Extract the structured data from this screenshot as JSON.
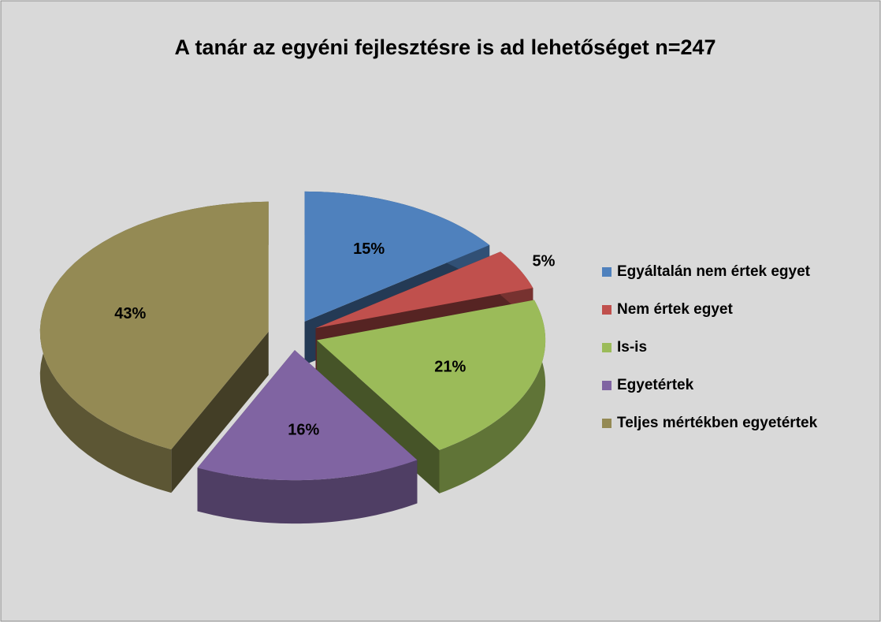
{
  "chart_data": {
    "type": "pie3d",
    "title": "A tanár az egyéni fejlesztésre is ad lehetőséget n=247",
    "categories": [
      "Egyáltalán nem értek egyet",
      "Nem értek egyet",
      "Is-is",
      "Egyetértek",
      "Teljes mértékben egyetértek"
    ],
    "values": [
      15,
      5,
      21,
      16,
      43
    ],
    "value_labels": [
      "15%",
      "5%",
      "21%",
      "16%",
      "43%"
    ],
    "colors": [
      "#4f81bd",
      "#c0504d",
      "#9bbb59",
      "#8064a2",
      "#948a54"
    ],
    "legend": "right"
  }
}
